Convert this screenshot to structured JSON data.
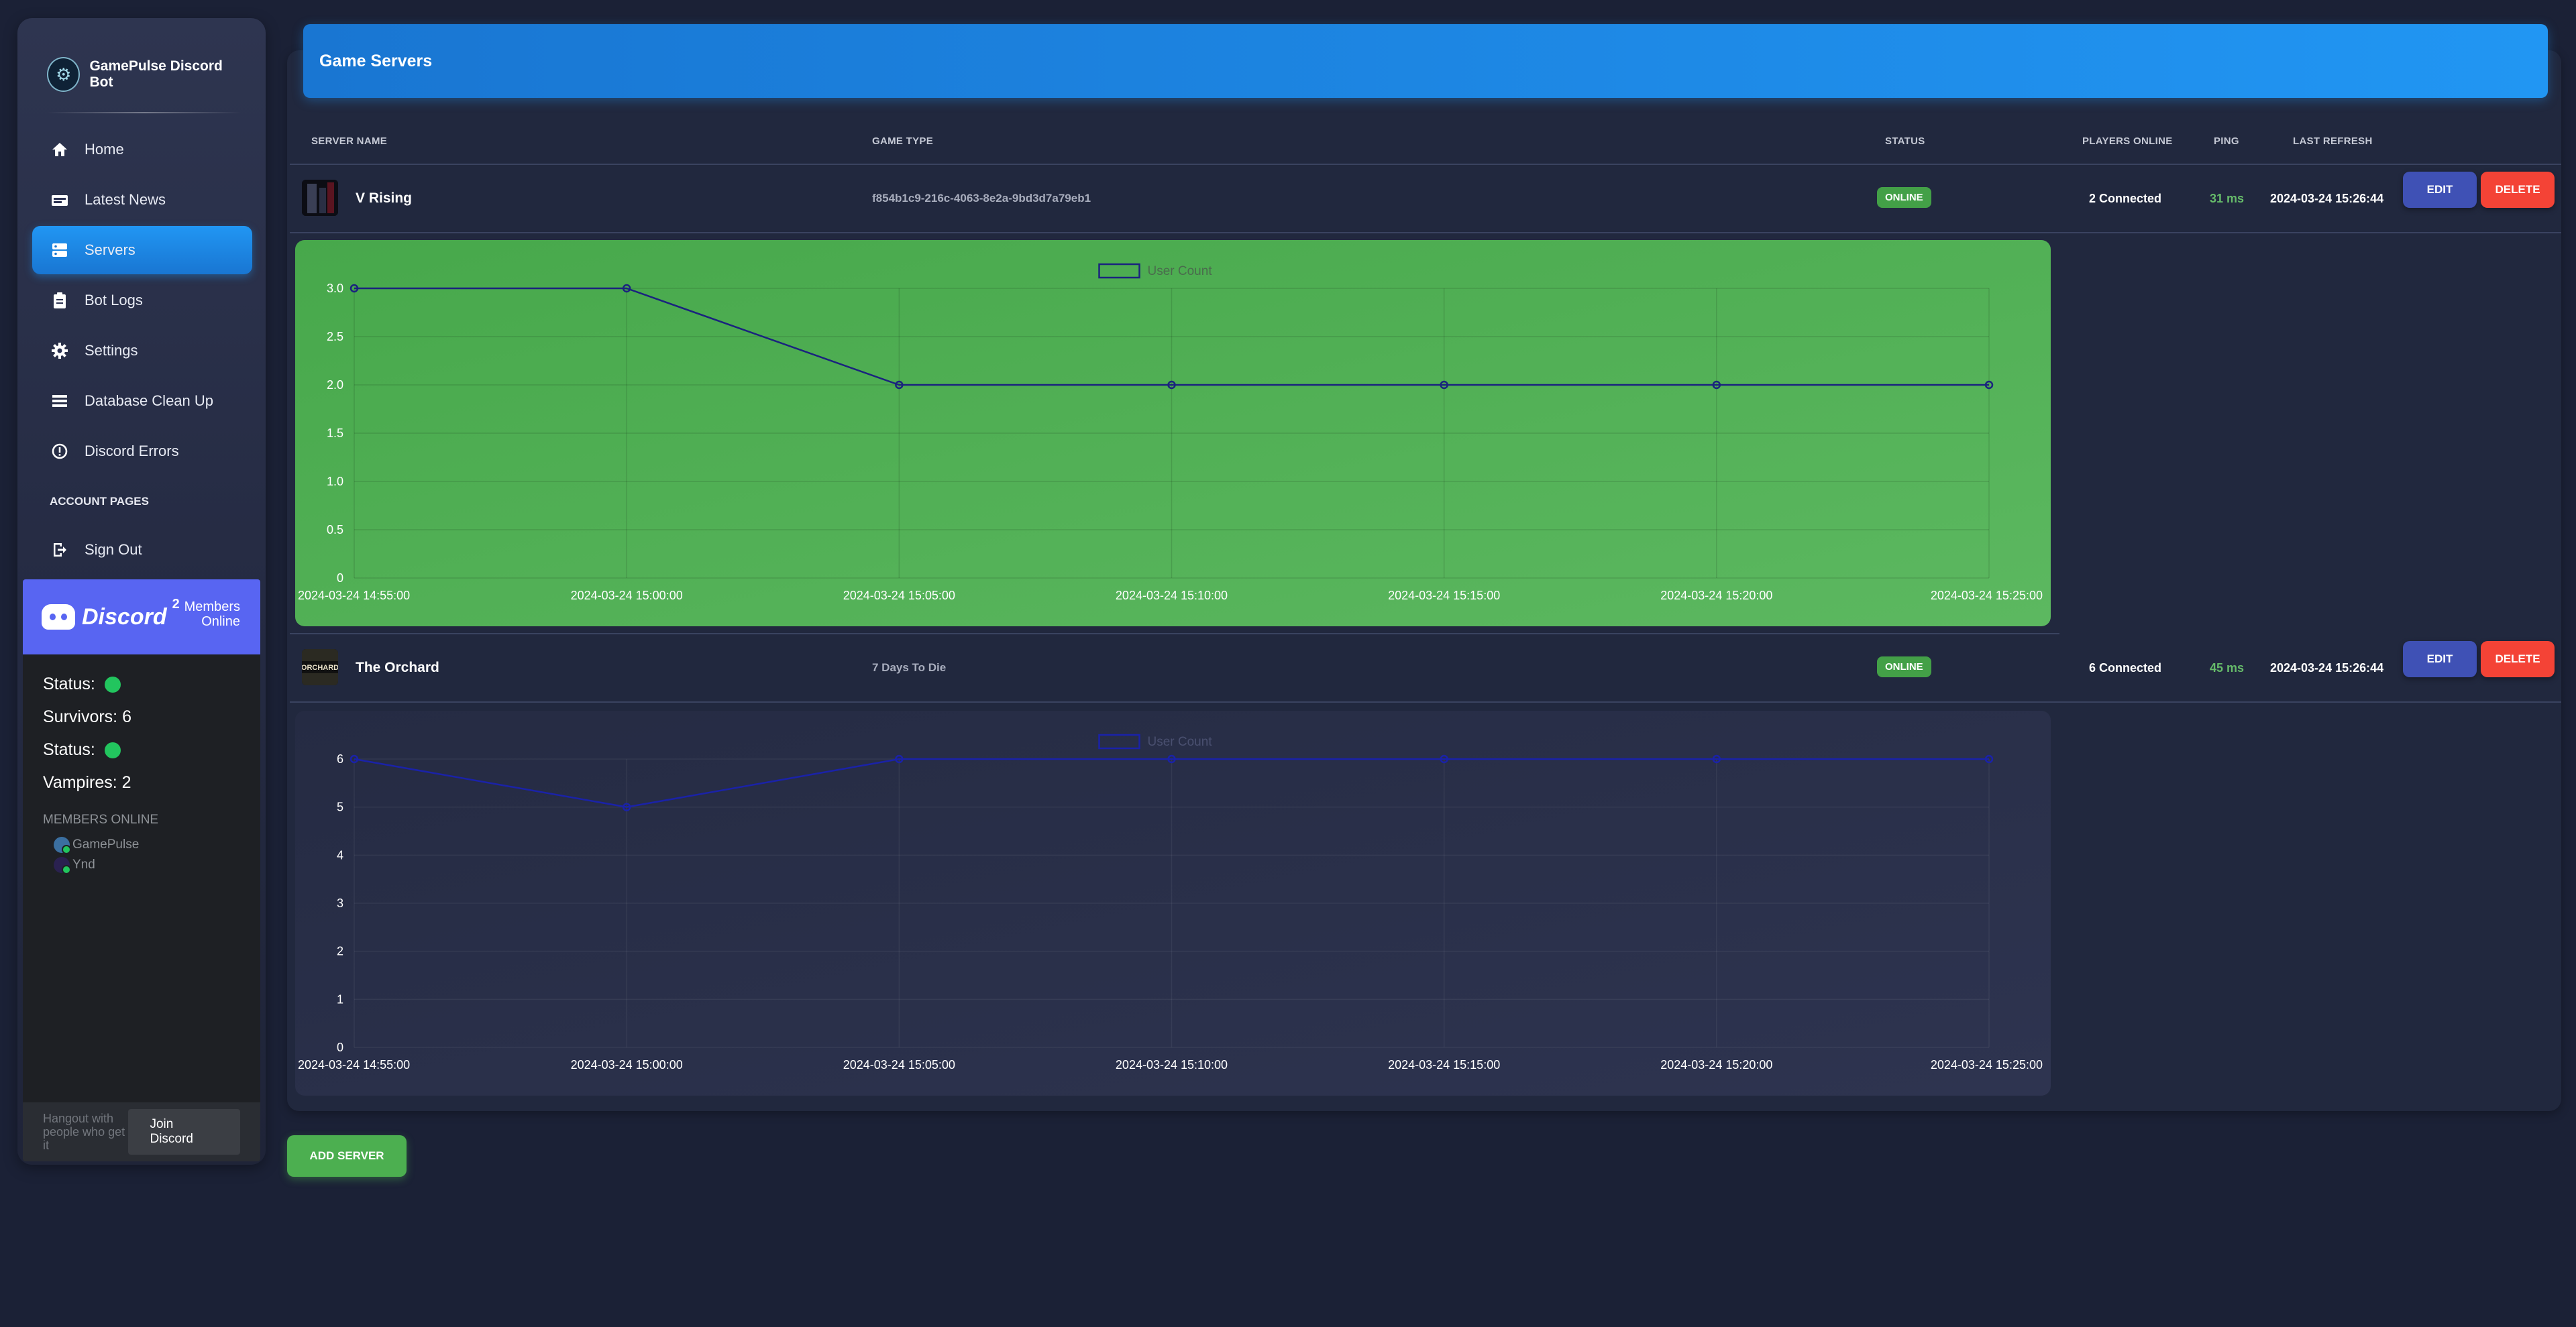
{
  "brand": {
    "title": "GamePulse Discord Bot",
    "logo_icon": "pulse-logo-icon"
  },
  "nav": {
    "items": [
      {
        "label": "Home",
        "icon": "home-icon"
      },
      {
        "label": "Latest News",
        "icon": "news-icon"
      },
      {
        "label": "Servers",
        "icon": "servers-icon",
        "active": true
      },
      {
        "label": "Bot Logs",
        "icon": "clipboard-icon"
      },
      {
        "label": "Settings",
        "icon": "gear-icon"
      },
      {
        "label": "Database Clean Up",
        "icon": "database-icon"
      },
      {
        "label": "Discord Errors",
        "icon": "alert-icon"
      }
    ],
    "account_section": "ACCOUNT PAGES",
    "sign_out": {
      "label": "Sign Out",
      "icon": "sign-out-icon"
    }
  },
  "discord_widget": {
    "name": "Discord",
    "member_count": "2",
    "members_online_label": "Members\nOnline",
    "status_lines": [
      {
        "label": "Status:",
        "online": true
      },
      {
        "label": "Survivors: 6"
      },
      {
        "label": "Status:",
        "online": true
      },
      {
        "label": "Vampires: 2"
      }
    ],
    "members_title": "MEMBERS ONLINE",
    "members": [
      "GamePulse",
      "Ynd"
    ],
    "footer_text": "Hangout with people who get it",
    "join_label": "Join Discord",
    "brand_color": "#5865f2"
  },
  "page": {
    "title": "Game Servers"
  },
  "table": {
    "headers": {
      "server_name": "SERVER NAME",
      "game_type": "GAME TYPE",
      "status": "STATUS",
      "players": "PLAYERS ONLINE",
      "ping": "PING",
      "last_refresh": "LAST REFRESH"
    },
    "rows": [
      {
        "name": "V Rising",
        "game_type": "f854b1c9-216c-4063-8e2a-9bd3d7a79eb1",
        "status": "ONLINE",
        "players": "2 Connected",
        "ping": "31 ms",
        "last_refresh": "2024-03-24 15:26:44",
        "edit_label": "EDIT",
        "delete_label": "DELETE"
      },
      {
        "name": "The Orchard",
        "game_type": "7 Days To Die",
        "status": "ONLINE",
        "players": "6 Connected",
        "ping": "45 ms",
        "last_refresh": "2024-03-24 15:26:44",
        "edit_label": "EDIT",
        "delete_label": "DELETE"
      }
    ]
  },
  "add_server_label": "ADD SERVER",
  "colors": {
    "accent": "#2196f3",
    "online": "#43a047",
    "danger": "#f44336",
    "edit": "#3f51b5",
    "ping": "#66bb6a",
    "chart1_bg": "#4caf50",
    "chart2_bg": "#2a3048",
    "line": "#1a237e"
  },
  "chart_data": [
    {
      "type": "line",
      "title": "",
      "x": [
        "2024-03-24 14:55:00",
        "2024-03-24 15:00:00",
        "2024-03-24 15:05:00",
        "2024-03-24 15:10:00",
        "2024-03-24 15:15:00",
        "2024-03-24 15:20:00",
        "2024-03-24 15:25:00"
      ],
      "series": [
        {
          "name": "User Count",
          "values": [
            3,
            3,
            2,
            2,
            2,
            2,
            2
          ]
        }
      ],
      "yticks": [
        "0",
        "0.5",
        "1.0",
        "1.5",
        "2.0",
        "2.5",
        "3.0"
      ],
      "ylim": [
        0,
        3
      ],
      "grid": true,
      "legend": "top-center"
    },
    {
      "type": "line",
      "title": "",
      "x": [
        "2024-03-24 14:55:00",
        "2024-03-24 15:00:00",
        "2024-03-24 15:05:00",
        "2024-03-24 15:10:00",
        "2024-03-24 15:15:00",
        "2024-03-24 15:20:00",
        "2024-03-24 15:25:00"
      ],
      "series": [
        {
          "name": "User Count",
          "values": [
            6,
            5,
            6,
            6,
            6,
            6,
            6
          ]
        }
      ],
      "yticks": [
        "0",
        "1",
        "2",
        "3",
        "4",
        "5",
        "6"
      ],
      "ylim": [
        0,
        6
      ],
      "grid": true,
      "legend": "top-center"
    }
  ]
}
